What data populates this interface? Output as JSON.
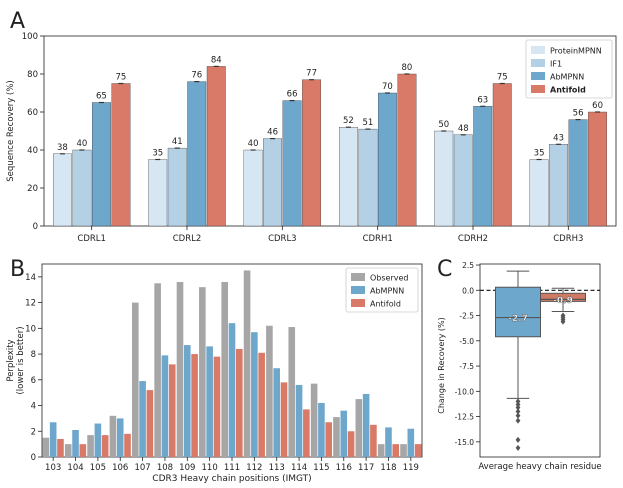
{
  "colors": {
    "proteinmpnn": "#d6e6f3",
    "if1": "#b4d0e4",
    "abmpnn": "#6ea7cc",
    "antifold": "#d97a68",
    "observed": "#a6a6a6",
    "box_abmpnn": "#6ea7cc",
    "box_antifold": "#d07a66"
  },
  "chart_data": [
    {
      "panel": "A",
      "type": "bar",
      "title": "",
      "xlabel": "",
      "ylabel": "Sequence Recovery (%)",
      "ylim": [
        0,
        100
      ],
      "yticks": [
        "0",
        "20",
        "40",
        "60",
        "80",
        "100"
      ],
      "categories": [
        "CDRL1",
        "CDRL2",
        "CDRL3",
        "CDRH1",
        "CDRH2",
        "CDRH3"
      ],
      "legend_position": "top-right",
      "series": [
        {
          "name": "ProteinMPNN",
          "color_key": "proteinmpnn",
          "values": [
            38,
            35,
            40,
            52,
            50,
            35
          ],
          "labels": [
            "38",
            "35",
            "40",
            "52",
            "50",
            "35"
          ],
          "bold": false
        },
        {
          "name": "IF1",
          "color_key": "if1",
          "values": [
            40,
            41,
            46,
            51,
            48,
            43
          ],
          "labels": [
            "40",
            "41",
            "46",
            "51",
            "48",
            "43"
          ],
          "bold": false
        },
        {
          "name": "AbMPNN",
          "color_key": "abmpnn",
          "values": [
            65,
            76,
            66,
            70,
            63,
            56
          ],
          "labels": [
            "65",
            "76",
            "66",
            "70",
            "63",
            "56"
          ],
          "bold": false
        },
        {
          "name": "Antifold",
          "color_key": "antifold",
          "values": [
            75,
            84,
            77,
            80,
            75,
            60
          ],
          "labels": [
            "75",
            "84",
            "77",
            "80",
            "75",
            "60"
          ],
          "bold": true
        }
      ]
    },
    {
      "panel": "B",
      "type": "bar",
      "title": "",
      "xlabel": "CDR3 Heavy chain positions (IMGT)",
      "ylabel": "Perplexity (lower is better)",
      "ylabel_lines": [
        "Perplexity",
        "(lower is better)"
      ],
      "ylim": [
        0,
        15
      ],
      "yticks": [
        "0",
        "2",
        "4",
        "6",
        "8",
        "10",
        "12",
        "14"
      ],
      "categories": [
        "103",
        "104",
        "105",
        "106",
        "107",
        "108",
        "109",
        "110",
        "111",
        "112",
        "113",
        "114",
        "115",
        "116",
        "117",
        "118",
        "119"
      ],
      "legend_position": "top-right",
      "series": [
        {
          "name": "Observed",
          "color_key": "observed",
          "values": [
            1.5,
            1.0,
            1.7,
            3.2,
            12.0,
            13.5,
            13.6,
            13.2,
            13.6,
            14.5,
            10.2,
            10.1,
            5.7,
            3.1,
            4.5,
            1.0,
            1.0
          ]
        },
        {
          "name": "AbMPNN",
          "color_key": "abmpnn",
          "values": [
            2.7,
            2.1,
            2.6,
            3.0,
            5.9,
            7.9,
            8.7,
            8.6,
            10.4,
            9.7,
            6.9,
            5.6,
            4.2,
            3.6,
            4.9,
            2.3,
            2.2
          ]
        },
        {
          "name": "Antifold",
          "color_key": "antifold",
          "values": [
            1.4,
            1.0,
            1.7,
            1.8,
            5.2,
            7.2,
            8.0,
            7.8,
            8.4,
            8.1,
            5.8,
            3.7,
            2.7,
            2.0,
            2.5,
            1.0,
            1.0
          ]
        }
      ]
    },
    {
      "panel": "C",
      "type": "box",
      "title": "",
      "xlabel": "Average heavy chain residue",
      "ylabel": "Change in Recovery (%)",
      "ylim": [
        -16.5,
        2.6
      ],
      "yticks": [
        "2.5",
        "0.0",
        "-2.5",
        "-5.0",
        "-7.5",
        "-10.0",
        "-12.5",
        "-15.0"
      ],
      "reference_line": 0,
      "boxes": [
        {
          "name": "AbMPNN",
          "color_key": "box_abmpnn",
          "median": -2.7,
          "median_label": "-2.7",
          "q1": -4.6,
          "q3": 0.3,
          "whisker_low": -10.7,
          "whisker_high": 1.9,
          "outliers": [
            -11.0,
            -11.3,
            -11.6,
            -12.0,
            -12.4,
            -12.9,
            -14.8,
            -15.6
          ]
        },
        {
          "name": "Antifold",
          "color_key": "box_antifold",
          "median": -0.9,
          "median_label": "-0.9",
          "q1": -1.1,
          "q3": -0.3,
          "whisker_low": -2.1,
          "whisker_high": 0.2,
          "outliers": [
            -2.5,
            -2.7,
            -2.9,
            -3.1
          ]
        }
      ]
    }
  ],
  "panel_labels": {
    "a": "A",
    "b": "B",
    "c": "C"
  }
}
